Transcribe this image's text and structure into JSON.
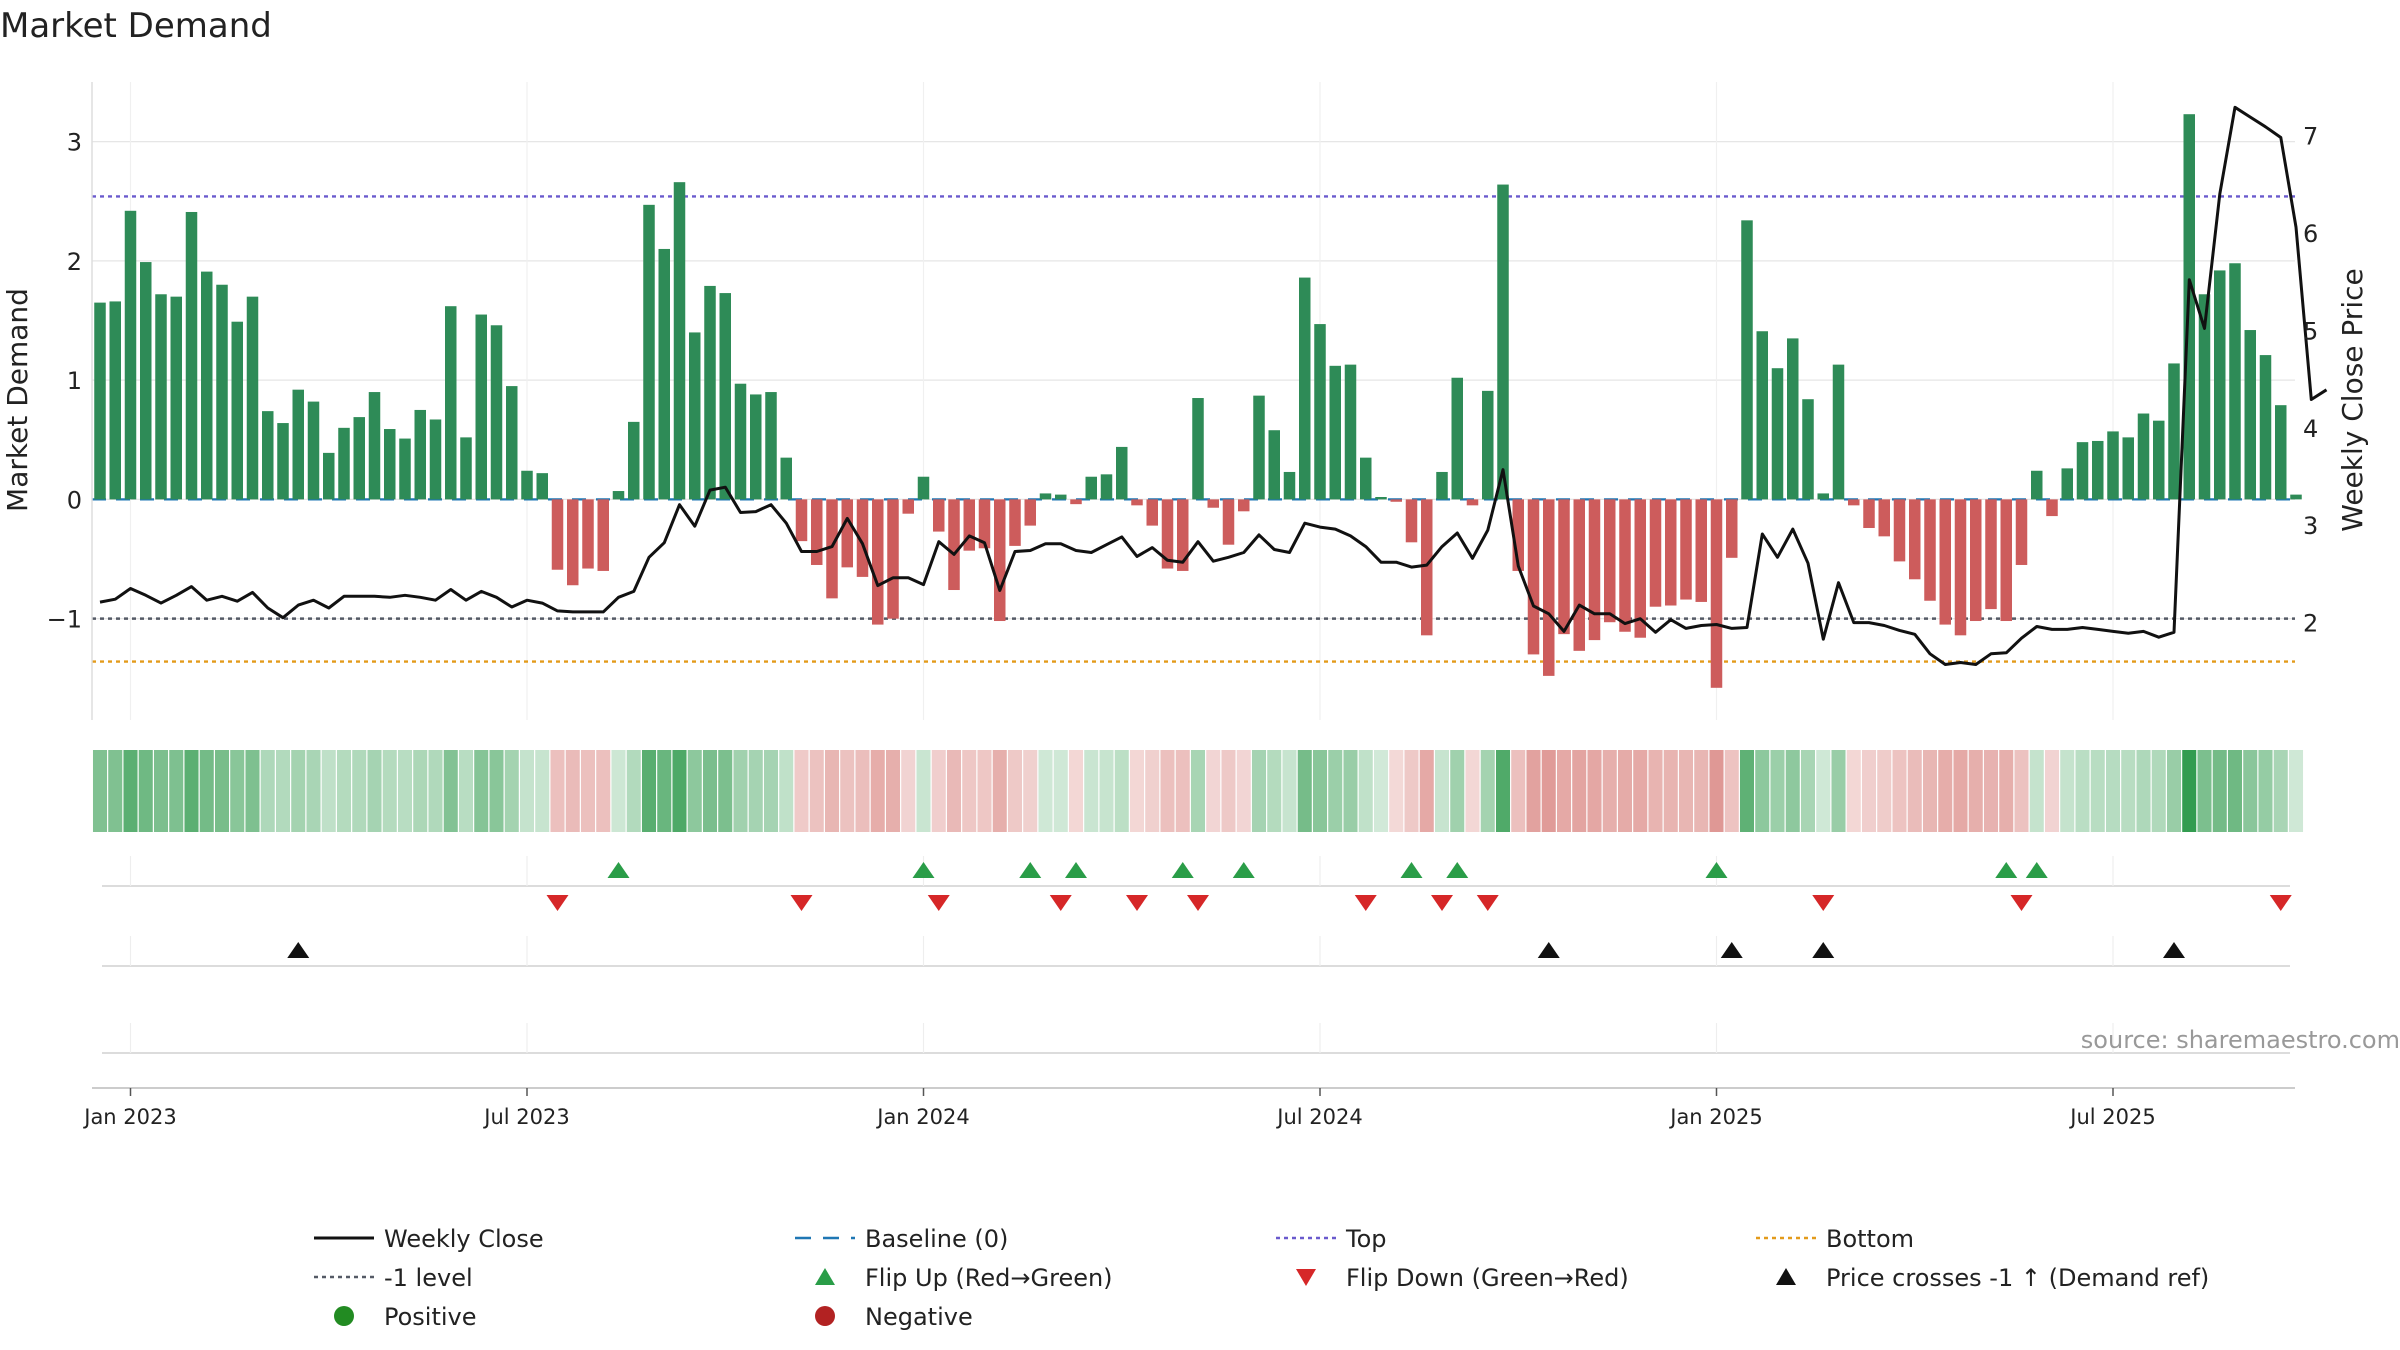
{
  "chart_data": {
    "type": "bar",
    "title": "Market Demand",
    "ylabel": "Market Demand",
    "y2label": "Weekly Close Price",
    "ylim": [
      -1.85,
      3.5
    ],
    "y2lim": [
      1.0,
      7.55
    ],
    "yticks": [
      {
        "v": 3,
        "t": "3"
      },
      {
        "v": 2,
        "t": "2"
      },
      {
        "v": 1,
        "t": "1"
      },
      {
        "v": 0,
        "t": "0"
      },
      {
        "v": -1,
        "t": "−1"
      }
    ],
    "y2ticks": [
      {
        "v": 7,
        "t": "7"
      },
      {
        "v": 6,
        "t": "6"
      },
      {
        "v": 5,
        "t": "5"
      },
      {
        "v": 4,
        "t": "4"
      },
      {
        "v": 3,
        "t": "3"
      },
      {
        "v": 2,
        "t": "2"
      }
    ],
    "xticks": [
      {
        "i": 2,
        "t": "Jan 2023"
      },
      {
        "i": 28,
        "t": "Jul 2023"
      },
      {
        "i": 54,
        "t": "Jan 2024"
      },
      {
        "i": 80,
        "t": "Jul 2024"
      },
      {
        "i": 106,
        "t": "Jan 2025"
      },
      {
        "i": 132,
        "t": "Jul 2025"
      }
    ],
    "levels": {
      "top": 2.54,
      "bottom": -1.36,
      "minus_one": -1.0,
      "baseline": 0
    },
    "demand": [
      1.65,
      1.66,
      2.42,
      1.99,
      1.72,
      1.7,
      2.41,
      1.91,
      1.8,
      1.49,
      1.7,
      0.74,
      0.64,
      0.92,
      0.82,
      0.39,
      0.6,
      0.69,
      0.9,
      0.59,
      0.51,
      0.75,
      0.67,
      1.62,
      0.52,
      1.55,
      1.46,
      0.95,
      0.24,
      0.22,
      -0.59,
      -0.72,
      -0.58,
      -0.6,
      0.07,
      0.65,
      2.47,
      2.1,
      2.66,
      1.4,
      1.79,
      1.73,
      0.97,
      0.88,
      0.9,
      0.35,
      -0.35,
      -0.55,
      -0.83,
      -0.57,
      -0.65,
      -1.05,
      -1.0,
      -0.12,
      0.19,
      -0.27,
      -0.76,
      -0.43,
      -0.41,
      -1.02,
      -0.39,
      -0.22,
      0.05,
      0.04,
      -0.04,
      0.19,
      0.21,
      0.44,
      -0.05,
      -0.22,
      -0.58,
      -0.6,
      0.85,
      -0.07,
      -0.38,
      -0.1,
      0.87,
      0.58,
      0.23,
      1.86,
      1.47,
      1.12,
      1.13,
      0.35,
      0.02,
      -0.02,
      -0.36,
      -1.14,
      0.23,
      1.02,
      -0.05,
      0.91,
      2.64,
      -0.6,
      -1.3,
      -1.48,
      -1.13,
      -1.27,
      -1.18,
      -1.03,
      -1.11,
      -1.16,
      -0.9,
      -0.89,
      -0.84,
      -0.86,
      -1.58,
      -0.49,
      2.34,
      1.41,
      1.1,
      1.35,
      0.84,
      0.05,
      1.13,
      -0.05,
      -0.24,
      -0.31,
      -0.52,
      -0.67,
      -0.85,
      -1.05,
      -1.14,
      -1.02,
      -0.92,
      -1.02,
      -0.55,
      0.24,
      -0.14,
      0.26,
      0.48,
      0.49,
      0.57,
      0.52,
      0.72,
      0.66,
      1.14,
      3.23,
      1.72,
      1.92,
      1.98,
      1.42,
      1.21,
      0.79,
      0.04
    ],
    "price": [
      2.21,
      2.24,
      2.35,
      2.28,
      2.2,
      2.28,
      2.37,
      2.23,
      2.27,
      2.22,
      2.31,
      2.15,
      2.05,
      2.18,
      2.23,
      2.15,
      2.27,
      2.27,
      2.27,
      2.26,
      2.28,
      2.26,
      2.23,
      2.34,
      2.23,
      2.32,
      2.26,
      2.16,
      2.23,
      2.2,
      2.12,
      2.11,
      2.11,
      2.11,
      2.26,
      2.32,
      2.67,
      2.82,
      3.21,
      2.99,
      3.36,
      3.39,
      3.13,
      3.14,
      3.21,
      3.02,
      2.73,
      2.73,
      2.78,
      3.07,
      2.81,
      2.38,
      2.46,
      2.46,
      2.39,
      2.83,
      2.7,
      2.89,
      2.82,
      2.33,
      2.73,
      2.74,
      2.81,
      2.81,
      2.74,
      2.72,
      2.8,
      2.88,
      2.68,
      2.77,
      2.64,
      2.62,
      2.83,
      2.63,
      2.67,
      2.72,
      2.9,
      2.75,
      2.72,
      3.02,
      2.98,
      2.96,
      2.89,
      2.78,
      2.62,
      2.62,
      2.57,
      2.59,
      2.78,
      2.92,
      2.66,
      2.95,
      3.57,
      2.58,
      2.17,
      2.09,
      1.91,
      2.18,
      2.09,
      2.09,
      1.99,
      2.04,
      1.9,
      2.03,
      1.94,
      1.97,
      1.98,
      1.94,
      1.95,
      2.91,
      2.67,
      2.96,
      2.61,
      1.83,
      2.41,
      2.0,
      2.0,
      1.97,
      1.92,
      1.88,
      1.68,
      1.57,
      1.59,
      1.57,
      1.68,
      1.69,
      1.84,
      1.96,
      1.93,
      1.93,
      1.95,
      1.93,
      1.91,
      1.89,
      1.91,
      1.85,
      1.9,
      5.52,
      5.02,
      6.4,
      7.29,
      7.19,
      7.09,
      6.98,
      6.06,
      4.29,
      4.39
    ],
    "flip_up_idx": [
      34,
      54,
      61,
      64,
      71,
      75,
      86,
      89,
      106,
      125,
      127
    ],
    "flip_down_idx": [
      30,
      46,
      55,
      63,
      68,
      72,
      83,
      88,
      91,
      113,
      126,
      143
    ],
    "cross_idx": [
      13,
      95,
      107,
      113,
      136
    ],
    "legend": [
      {
        "label": "Weekly Close",
        "kind": "solid-line",
        "color": "#111111"
      },
      {
        "label": "Baseline (0)",
        "kind": "dash-line",
        "color": "#1f77b4"
      },
      {
        "label": "Top",
        "kind": "dot-line",
        "color": "#6a5acd"
      },
      {
        "label": "Bottom",
        "kind": "dot-line",
        "color": "#e39b1b"
      },
      {
        "label": "-1 level",
        "kind": "dot-line",
        "color": "#555a66"
      },
      {
        "label": "Flip Up (Red→Green)",
        "kind": "tri-up",
        "color": "#2a9d48"
      },
      {
        "label": "Flip Down (Green→Red)",
        "kind": "tri-down",
        "color": "#d62728"
      },
      {
        "label": "Price crosses -1 ↑ (Demand ref)",
        "kind": "tri-up",
        "color": "#111111"
      },
      {
        "label": "Positive",
        "kind": "dot",
        "color": "#228b22"
      },
      {
        "label": "Negative",
        "kind": "dot",
        "color": "#b22222"
      }
    ]
  },
  "watermark": "source: sharemaestro.com",
  "colors": {
    "positive_bar": "#2e8b57",
    "negative_bar": "#cd5c5c",
    "heat_pos": "#2f9a4c",
    "heat_neg": "#c9504a",
    "grid": "#e6e6e6"
  }
}
